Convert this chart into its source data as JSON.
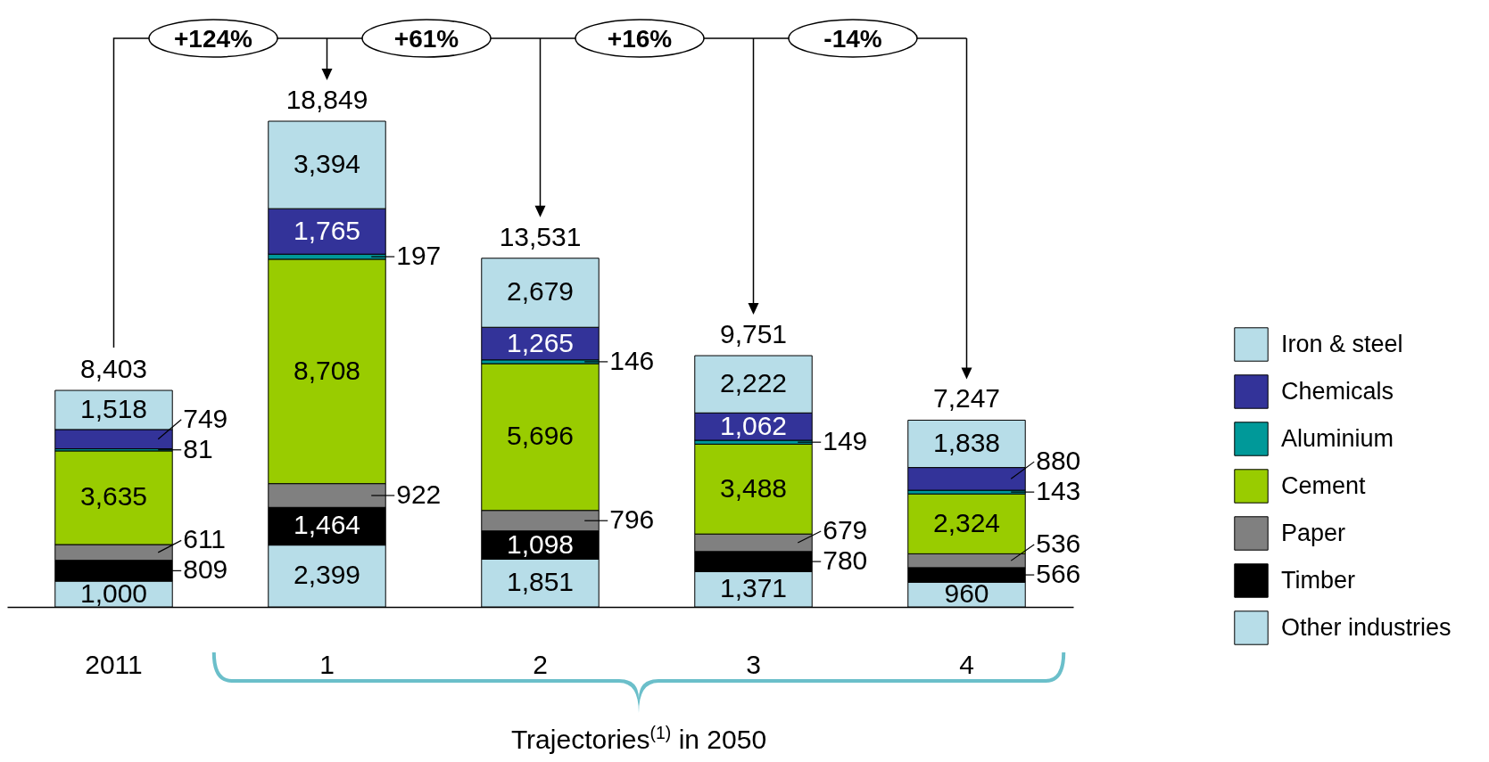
{
  "chart_data": {
    "type": "bar",
    "stacked": true,
    "legend": "right",
    "categories": [
      "2011",
      "1",
      "2",
      "3",
      "4"
    ],
    "series": [
      {
        "name": "Other industries",
        "color": "#b7dde8",
        "values": [
          1000,
          2399,
          1851,
          1371,
          960
        ],
        "value_labels": [
          "1,000",
          "2,399",
          "1,851",
          "1,371",
          "960"
        ]
      },
      {
        "name": "Timber",
        "color": "#000000",
        "values": [
          809,
          1464,
          1098,
          780,
          566
        ],
        "value_labels": [
          "809",
          "1,464",
          "1,098",
          "780",
          "566"
        ]
      },
      {
        "name": "Paper",
        "color": "#808080",
        "values": [
          611,
          922,
          796,
          679,
          536
        ],
        "value_labels": [
          "611",
          "922",
          "796",
          "679",
          "536"
        ]
      },
      {
        "name": "Cement",
        "color": "#99cc00",
        "values": [
          3635,
          8708,
          5696,
          3488,
          2324
        ],
        "value_labels": [
          "3,635",
          "8,708",
          "5,696",
          "3,488",
          "2,324"
        ]
      },
      {
        "name": "Aluminium",
        "color": "#009999",
        "values": [
          81,
          197,
          146,
          149,
          143
        ],
        "value_labels": [
          "81",
          "197",
          "146",
          "149",
          "143"
        ]
      },
      {
        "name": "Chemicals",
        "color": "#333399",
        "values": [
          749,
          1765,
          1265,
          1062,
          880
        ],
        "value_labels": [
          "749",
          "1,765",
          "1,265",
          "1,062",
          "880"
        ]
      },
      {
        "name": "Iron & steel",
        "color": "#b7dde8",
        "values": [
          1518,
          3394,
          2679,
          2222,
          1838
        ],
        "value_labels": [
          "1,518",
          "3,394",
          "2,679",
          "2,222",
          "1,838"
        ]
      }
    ],
    "totals": [
      "8,403",
      "18,849",
      "13,531",
      "9,751",
      "7,247"
    ],
    "annotations": [
      "+124%",
      "+61%",
      "+16%",
      "-14%",
      "Trajectories$^{(1)}$ in 2050"
    ]
  }
}
